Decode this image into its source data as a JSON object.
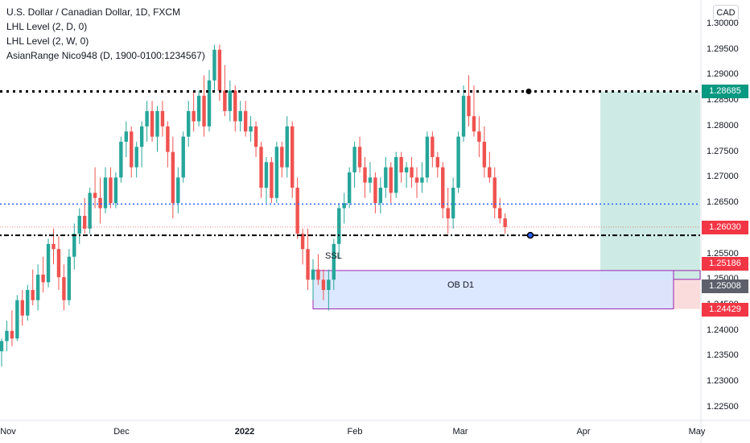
{
  "legend": {
    "title": "U.S. Dollar / Canadian Dollar, 1D, FXCM",
    "indicator1": "LHL Level (2, D, 0)",
    "indicator2": "LHL Level (2, W, 0)",
    "indicator3": "AsianRange Nico948 (D, 1900-0100:1234567)"
  },
  "currency_button": "CAD",
  "annotations": {
    "ssl": "SSL",
    "ob": "OB D1"
  },
  "price_tags": [
    {
      "value": "1.28685",
      "color": "#089981"
    },
    {
      "value": "1.26030",
      "color": "#f23645"
    },
    {
      "value": "1.25186",
      "color": "#f23645"
    },
    {
      "value": "1.25008",
      "color": "#5d606b"
    },
    {
      "value": "1.24429",
      "color": "#f23645"
    }
  ],
  "colors": {
    "up": "#26a69a",
    "down": "#ef5350",
    "level_black": "#000000",
    "level_blue": "#2962ff",
    "ob_fill": "#d6e4ff",
    "ob_border": "#9c27b0",
    "target_fill": "#cdebe4",
    "stop_fill": "#fadcdc"
  },
  "chart_data": {
    "type": "candlestick",
    "title": "U.S. Dollar / Canadian Dollar, 1D, FXCM",
    "y_ticks": [
      "1.30000",
      "1.29500",
      "1.29000",
      "1.28500",
      "1.28000",
      "1.27500",
      "1.27000",
      "1.26500",
      "1.26000",
      "1.25500",
      "1.25000",
      "1.24500",
      "1.24000",
      "1.23500",
      "1.23000",
      "1.22500"
    ],
    "x_ticks": [
      {
        "label": "Nov",
        "bold": false
      },
      {
        "label": "Dec",
        "bold": false
      },
      {
        "label": "2022",
        "bold": true
      },
      {
        "label": "Feb",
        "bold": false
      },
      {
        "label": "Mar",
        "bold": false
      },
      {
        "label": "Apr",
        "bold": false
      },
      {
        "label": "May",
        "bold": false
      }
    ],
    "ylim": [
      1.2205,
      1.302
    ],
    "levels": {
      "upper_black": 1.28685,
      "blue": 1.2648,
      "lower_black": 1.2587,
      "current_price": 1.2603
    },
    "order_block": {
      "label": "OB D1",
      "top": 1.2518,
      "bottom": 1.2443
    },
    "position": {
      "entry": 1.25008,
      "target": 1.28685,
      "stop": 1.24429
    },
    "candles": [
      [
        1.236,
        1.2385,
        1.233,
        1.238
      ],
      [
        1.238,
        1.242,
        1.236,
        1.24
      ],
      [
        1.24,
        1.244,
        1.237,
        1.2385
      ],
      [
        1.2385,
        1.247,
        1.238,
        1.246
      ],
      [
        1.246,
        1.248,
        1.241,
        1.243
      ],
      [
        1.243,
        1.249,
        1.242,
        1.248
      ],
      [
        1.248,
        1.252,
        1.245,
        1.246
      ],
      [
        1.246,
        1.253,
        1.244,
        1.251
      ],
      [
        1.251,
        1.2545,
        1.2475,
        1.2495
      ],
      [
        1.2495,
        1.258,
        1.2485,
        1.257
      ],
      [
        1.257,
        1.26,
        1.253,
        1.256
      ],
      [
        1.256,
        1.2585,
        1.248,
        1.2505
      ],
      [
        1.2505,
        1.253,
        1.244,
        1.246
      ],
      [
        1.246,
        1.256,
        1.245,
        1.2545
      ],
      [
        1.2545,
        1.261,
        1.252,
        1.259
      ],
      [
        1.259,
        1.264,
        1.257,
        1.2625
      ],
      [
        1.2625,
        1.266,
        1.259,
        1.26
      ],
      [
        1.26,
        1.268,
        1.259,
        1.267
      ],
      [
        1.267,
        1.272,
        1.264,
        1.266
      ],
      [
        1.266,
        1.27,
        1.261,
        1.264
      ],
      [
        1.264,
        1.272,
        1.263,
        1.27
      ],
      [
        1.27,
        1.272,
        1.264,
        1.265
      ],
      [
        1.265,
        1.271,
        1.264,
        1.27
      ],
      [
        1.27,
        1.278,
        1.269,
        1.277
      ],
      [
        1.277,
        1.281,
        1.274,
        1.279
      ],
      [
        1.279,
        1.28,
        1.27,
        1.272
      ],
      [
        1.272,
        1.277,
        1.27,
        1.276
      ],
      [
        1.276,
        1.281,
        1.272,
        1.28
      ],
      [
        1.28,
        1.285,
        1.277,
        1.283
      ],
      [
        1.283,
        1.285,
        1.277,
        1.278
      ],
      [
        1.278,
        1.284,
        1.275,
        1.283
      ],
      [
        1.283,
        1.285,
        1.278,
        1.28
      ],
      [
        1.28,
        1.281,
        1.272,
        1.275
      ],
      [
        1.275,
        1.278,
        1.262,
        1.265
      ],
      [
        1.265,
        1.272,
        1.263,
        1.27
      ],
      [
        1.27,
        1.279,
        1.269,
        1.278
      ],
      [
        1.278,
        1.285,
        1.276,
        1.283
      ],
      [
        1.283,
        1.287,
        1.279,
        1.281
      ],
      [
        1.281,
        1.287,
        1.28,
        1.286
      ],
      [
        1.286,
        1.29,
        1.278,
        1.28
      ],
      [
        1.28,
        1.291,
        1.279,
        1.289
      ],
      [
        1.289,
        1.296,
        1.287,
        1.295
      ],
      [
        1.295,
        1.296,
        1.285,
        1.287
      ],
      [
        1.287,
        1.292,
        1.282,
        1.283
      ],
      [
        1.283,
        1.289,
        1.281,
        1.287
      ],
      [
        1.287,
        1.288,
        1.279,
        1.281
      ],
      [
        1.281,
        1.285,
        1.279,
        1.283
      ],
      [
        1.283,
        1.285,
        1.278,
        1.279
      ],
      [
        1.279,
        1.282,
        1.277,
        1.28
      ],
      [
        1.28,
        1.281,
        1.274,
        1.276
      ],
      [
        1.276,
        1.277,
        1.266,
        1.268
      ],
      [
        1.268,
        1.274,
        1.265,
        1.273
      ],
      [
        1.273,
        1.274,
        1.265,
        1.266
      ],
      [
        1.266,
        1.277,
        1.265,
        1.276
      ],
      [
        1.276,
        1.277,
        1.27,
        1.272
      ],
      [
        1.272,
        1.282,
        1.27,
        1.28
      ],
      [
        1.28,
        1.281,
        1.266,
        1.268
      ],
      [
        1.268,
        1.27,
        1.258,
        1.259
      ],
      [
        1.259,
        1.26,
        1.253,
        1.256
      ],
      [
        1.256,
        1.26,
        1.248,
        1.25
      ],
      [
        1.25,
        1.254,
        1.246,
        1.252
      ],
      [
        1.252,
        1.255,
        1.249,
        1.25
      ],
      [
        1.25,
        1.252,
        1.246,
        1.248
      ],
      [
        1.248,
        1.252,
        1.244,
        1.25
      ],
      [
        1.25,
        1.258,
        1.248,
        1.257
      ],
      [
        1.257,
        1.265,
        1.254,
        1.264
      ],
      [
        1.264,
        1.267,
        1.261,
        1.265
      ],
      [
        1.265,
        1.272,
        1.264,
        1.271
      ],
      [
        1.271,
        1.277,
        1.268,
        1.276
      ],
      [
        1.276,
        1.278,
        1.271,
        1.272
      ],
      [
        1.272,
        1.274,
        1.266,
        1.269
      ],
      [
        1.269,
        1.273,
        1.267,
        1.27
      ],
      [
        1.27,
        1.271,
        1.263,
        1.265
      ],
      [
        1.265,
        1.27,
        1.263,
        1.268
      ],
      [
        1.268,
        1.274,
        1.266,
        1.272
      ],
      [
        1.272,
        1.273,
        1.265,
        1.267
      ],
      [
        1.267,
        1.275,
        1.266,
        1.274
      ],
      [
        1.274,
        1.275,
        1.269,
        1.271
      ],
      [
        1.271,
        1.273,
        1.268,
        1.272
      ],
      [
        1.272,
        1.274,
        1.268,
        1.27
      ],
      [
        1.27,
        1.272,
        1.266,
        1.269
      ],
      [
        1.269,
        1.273,
        1.267,
        1.27
      ],
      [
        1.27,
        1.279,
        1.269,
        1.278
      ],
      [
        1.278,
        1.279,
        1.272,
        1.274
      ],
      [
        1.274,
        1.275,
        1.27,
        1.272
      ],
      [
        1.272,
        1.273,
        1.262,
        1.264
      ],
      [
        1.264,
        1.268,
        1.259,
        1.262
      ],
      [
        1.262,
        1.27,
        1.26,
        1.268
      ],
      [
        1.268,
        1.279,
        1.267,
        1.278
      ],
      [
        1.278,
        1.288,
        1.277,
        1.286
      ],
      [
        1.286,
        1.29,
        1.28,
        1.282
      ],
      [
        1.282,
        1.288,
        1.278,
        1.279
      ],
      [
        1.279,
        1.282,
        1.274,
        1.277
      ],
      [
        1.277,
        1.28,
        1.27,
        1.272
      ],
      [
        1.272,
        1.275,
        1.269,
        1.27
      ],
      [
        1.27,
        1.272,
        1.262,
        1.264
      ],
      [
        1.264,
        1.266,
        1.261,
        1.262
      ],
      [
        1.262,
        1.263,
        1.259,
        1.2603
      ]
    ]
  }
}
